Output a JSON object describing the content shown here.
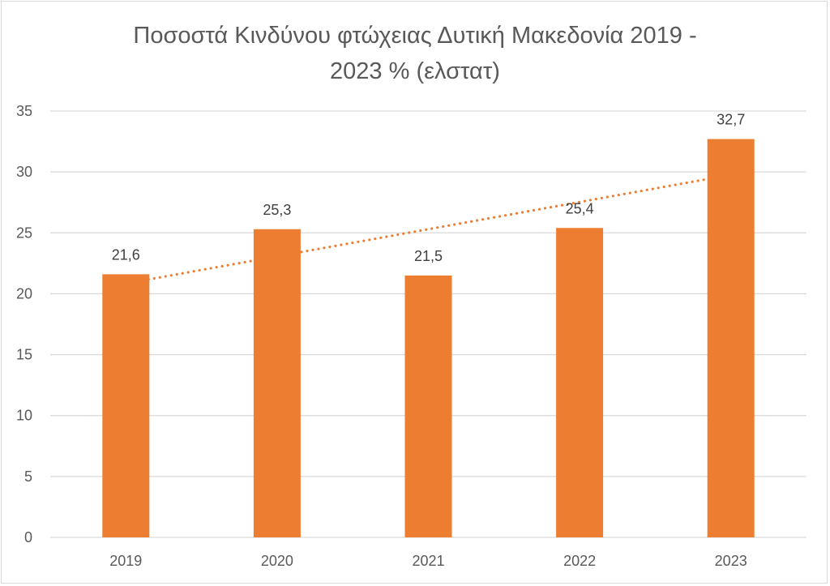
{
  "chart_data": {
    "type": "bar",
    "title_line1": "Ποσοστά Κινδύνου φτώχειας Δυτική Μακεδονία 2019 -",
    "title_line2": "2023 % (ελστατ)",
    "categories": [
      "2019",
      "2020",
      "2021",
      "2022",
      "2023"
    ],
    "values": [
      21.6,
      25.3,
      21.5,
      25.4,
      32.7
    ],
    "data_labels": [
      "21,6",
      "25,3",
      "21,5",
      "25,4",
      "32,7"
    ],
    "y_ticks": [
      0,
      5,
      10,
      15,
      20,
      25,
      30,
      35
    ],
    "ylim": [
      0,
      35
    ],
    "grid": true,
    "legend": "none",
    "trendline": "linear, dotted",
    "bar_color": "#ED7D31",
    "trend_color": "#ED7D31",
    "grid_color": "#D9D9D9"
  }
}
